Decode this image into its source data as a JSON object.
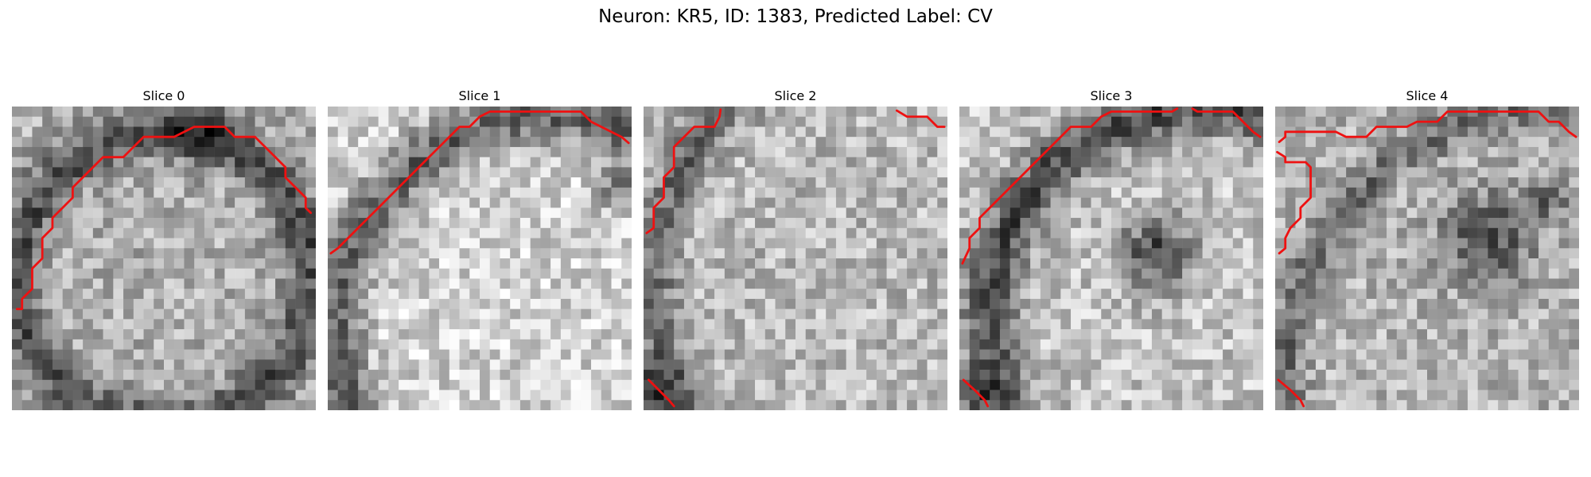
{
  "figure": {
    "title": "Neuron: KR5, ID: 1383, Predicted Label: CV"
  },
  "grid_size": 30,
  "contour_color": "#ee1111",
  "panels": [
    {
      "title": "Slice 0",
      "seed": 11,
      "base": 175,
      "features": [
        {
          "type": "ring",
          "cx": 15,
          "cy": 17,
          "r": 14.5,
          "width": 2.4,
          "depth": 95
        },
        {
          "type": "blob",
          "cx": 19,
          "cy": 2.5,
          "r": 3,
          "depth": 70
        }
      ],
      "contours": [
        [
          [
            29.5,
            10.5
          ],
          [
            29,
            10
          ],
          [
            29,
            9
          ],
          [
            28,
            8
          ],
          [
            27,
            7
          ],
          [
            27,
            6
          ],
          [
            26,
            5
          ],
          [
            25,
            4
          ],
          [
            24,
            3
          ],
          [
            22,
            3
          ],
          [
            21,
            2
          ],
          [
            18,
            2
          ],
          [
            16,
            3
          ],
          [
            13,
            3
          ],
          [
            12,
            4
          ],
          [
            11,
            5
          ],
          [
            9,
            5
          ],
          [
            8,
            6
          ],
          [
            7,
            7
          ],
          [
            6,
            8
          ],
          [
            6,
            9
          ],
          [
            5,
            10
          ],
          [
            4,
            11
          ],
          [
            4,
            12
          ],
          [
            3,
            13
          ],
          [
            3,
            15
          ],
          [
            2,
            16
          ],
          [
            2,
            18
          ],
          [
            1,
            19
          ],
          [
            1,
            20
          ],
          [
            0.5,
            20
          ]
        ]
      ]
    },
    {
      "title": "Slice 1",
      "seed": 23,
      "base": 210,
      "features": [
        {
          "type": "ring",
          "cx": 22,
          "cy": 22,
          "r": 21,
          "width": 2.6,
          "depth": 110
        },
        {
          "type": "blob",
          "cx": 28.5,
          "cy": 8,
          "r": 2,
          "depth": 90
        }
      ],
      "contours": [
        [
          [
            0.3,
            14.5
          ],
          [
            1,
            14
          ],
          [
            2,
            13
          ],
          [
            3,
            12
          ],
          [
            4,
            11
          ],
          [
            5,
            10
          ],
          [
            6,
            9
          ],
          [
            7,
            8
          ],
          [
            8,
            7
          ],
          [
            9,
            6
          ],
          [
            10,
            5
          ],
          [
            11,
            4
          ],
          [
            12,
            3
          ],
          [
            13,
            2
          ],
          [
            14,
            2
          ],
          [
            15,
            1
          ],
          [
            16,
            0.5
          ],
          [
            25,
            0.5
          ],
          [
            26,
            1.5
          ],
          [
            27,
            2
          ],
          [
            28,
            2.5
          ],
          [
            29,
            3
          ],
          [
            29.7,
            3.6
          ]
        ]
      ]
    },
    {
      "title": "Slice 2",
      "seed": 37,
      "base": 185,
      "features": [
        {
          "type": "ring",
          "cx": 27,
          "cy": 18,
          "r": 26,
          "width": 2.2,
          "depth": 80
        },
        {
          "type": "blob",
          "cx": 1,
          "cy": 28,
          "r": 2.5,
          "depth": 80
        }
      ],
      "contours": [
        [
          [
            0.3,
            12.5
          ],
          [
            1,
            12
          ],
          [
            1,
            10
          ],
          [
            2,
            9
          ],
          [
            2,
            7
          ],
          [
            3,
            6
          ],
          [
            3,
            4
          ],
          [
            4,
            3
          ],
          [
            5,
            2
          ],
          [
            7,
            2
          ],
          [
            7.5,
            1
          ],
          [
            7.6,
            0.3
          ]
        ],
        [
          [
            25,
            0.4
          ],
          [
            26,
            1
          ],
          [
            28,
            1
          ],
          [
            29,
            2
          ],
          [
            29.7,
            2
          ]
        ],
        [
          [
            0.5,
            27
          ],
          [
            1.5,
            28
          ],
          [
            2.5,
            29
          ],
          [
            3,
            29.6
          ]
        ]
      ]
    },
    {
      "title": "Slice 3",
      "seed": 41,
      "base": 195,
      "features": [
        {
          "type": "ring",
          "cx": 24,
          "cy": 21,
          "r": 21,
          "width": 2.8,
          "depth": 120
        },
        {
          "type": "blob",
          "cx": 19.5,
          "cy": 14.5,
          "r": 3.6,
          "depth": 125
        },
        {
          "type": "blob",
          "cx": 1,
          "cy": 28.5,
          "r": 2.2,
          "depth": 90
        }
      ],
      "contours": [
        [
          [
            0.3,
            15.5
          ],
          [
            1,
            14
          ],
          [
            1,
            13
          ],
          [
            2,
            12
          ],
          [
            2,
            11
          ],
          [
            3,
            10
          ],
          [
            4,
            9
          ],
          [
            5,
            8
          ],
          [
            6,
            7
          ],
          [
            7,
            6
          ],
          [
            8,
            5
          ],
          [
            9,
            4
          ],
          [
            10,
            3
          ],
          [
            11,
            2
          ],
          [
            13,
            2
          ],
          [
            14,
            1
          ],
          [
            15,
            0.5
          ],
          [
            21,
            0.5
          ],
          [
            21.5,
            0.2
          ]
        ],
        [
          [
            23,
            0.2
          ],
          [
            23.5,
            0.5
          ],
          [
            27,
            0.5
          ],
          [
            28,
            1.5
          ],
          [
            29,
            2.5
          ],
          [
            29.7,
            3
          ]
        ],
        [
          [
            0.4,
            27
          ],
          [
            1.5,
            28
          ],
          [
            2.5,
            29
          ],
          [
            2.8,
            29.6
          ]
        ]
      ]
    },
    {
      "title": "Slice 4",
      "seed": 53,
      "base": 180,
      "features": [
        {
          "type": "blob",
          "cx": 21,
          "cy": 13,
          "r": 4.5,
          "depth": 105
        },
        {
          "type": "blob",
          "cx": 27,
          "cy": 9,
          "r": 2.2,
          "depth": 70
        },
        {
          "type": "ring",
          "cx": 28,
          "cy": 27,
          "r": 27,
          "width": 2,
          "depth": 70
        }
      ],
      "contours": [
        [
          [
            0.4,
            3.5
          ],
          [
            1,
            3
          ],
          [
            1,
            2.5
          ],
          [
            6,
            2.5
          ],
          [
            7,
            3
          ],
          [
            9,
            3
          ],
          [
            10,
            2
          ],
          [
            13,
            2
          ],
          [
            14,
            1.5
          ],
          [
            16,
            1.5
          ],
          [
            17,
            0.5
          ],
          [
            26,
            0.5
          ],
          [
            27,
            1.5
          ],
          [
            28,
            1.5
          ],
          [
            29,
            2.5
          ],
          [
            29.7,
            3
          ]
        ],
        [
          [
            0.2,
            4.5
          ],
          [
            1,
            5
          ],
          [
            1,
            5.5
          ],
          [
            3,
            5.5
          ],
          [
            3.5,
            6
          ],
          [
            3.5,
            9
          ],
          [
            2.5,
            10
          ],
          [
            2.5,
            11
          ],
          [
            1.5,
            12
          ],
          [
            1,
            13
          ],
          [
            1,
            14
          ],
          [
            0.4,
            14.5
          ]
        ],
        [
          [
            0.3,
            27
          ],
          [
            1.5,
            28
          ],
          [
            2.5,
            29
          ],
          [
            2.8,
            29.6
          ]
        ]
      ]
    }
  ]
}
